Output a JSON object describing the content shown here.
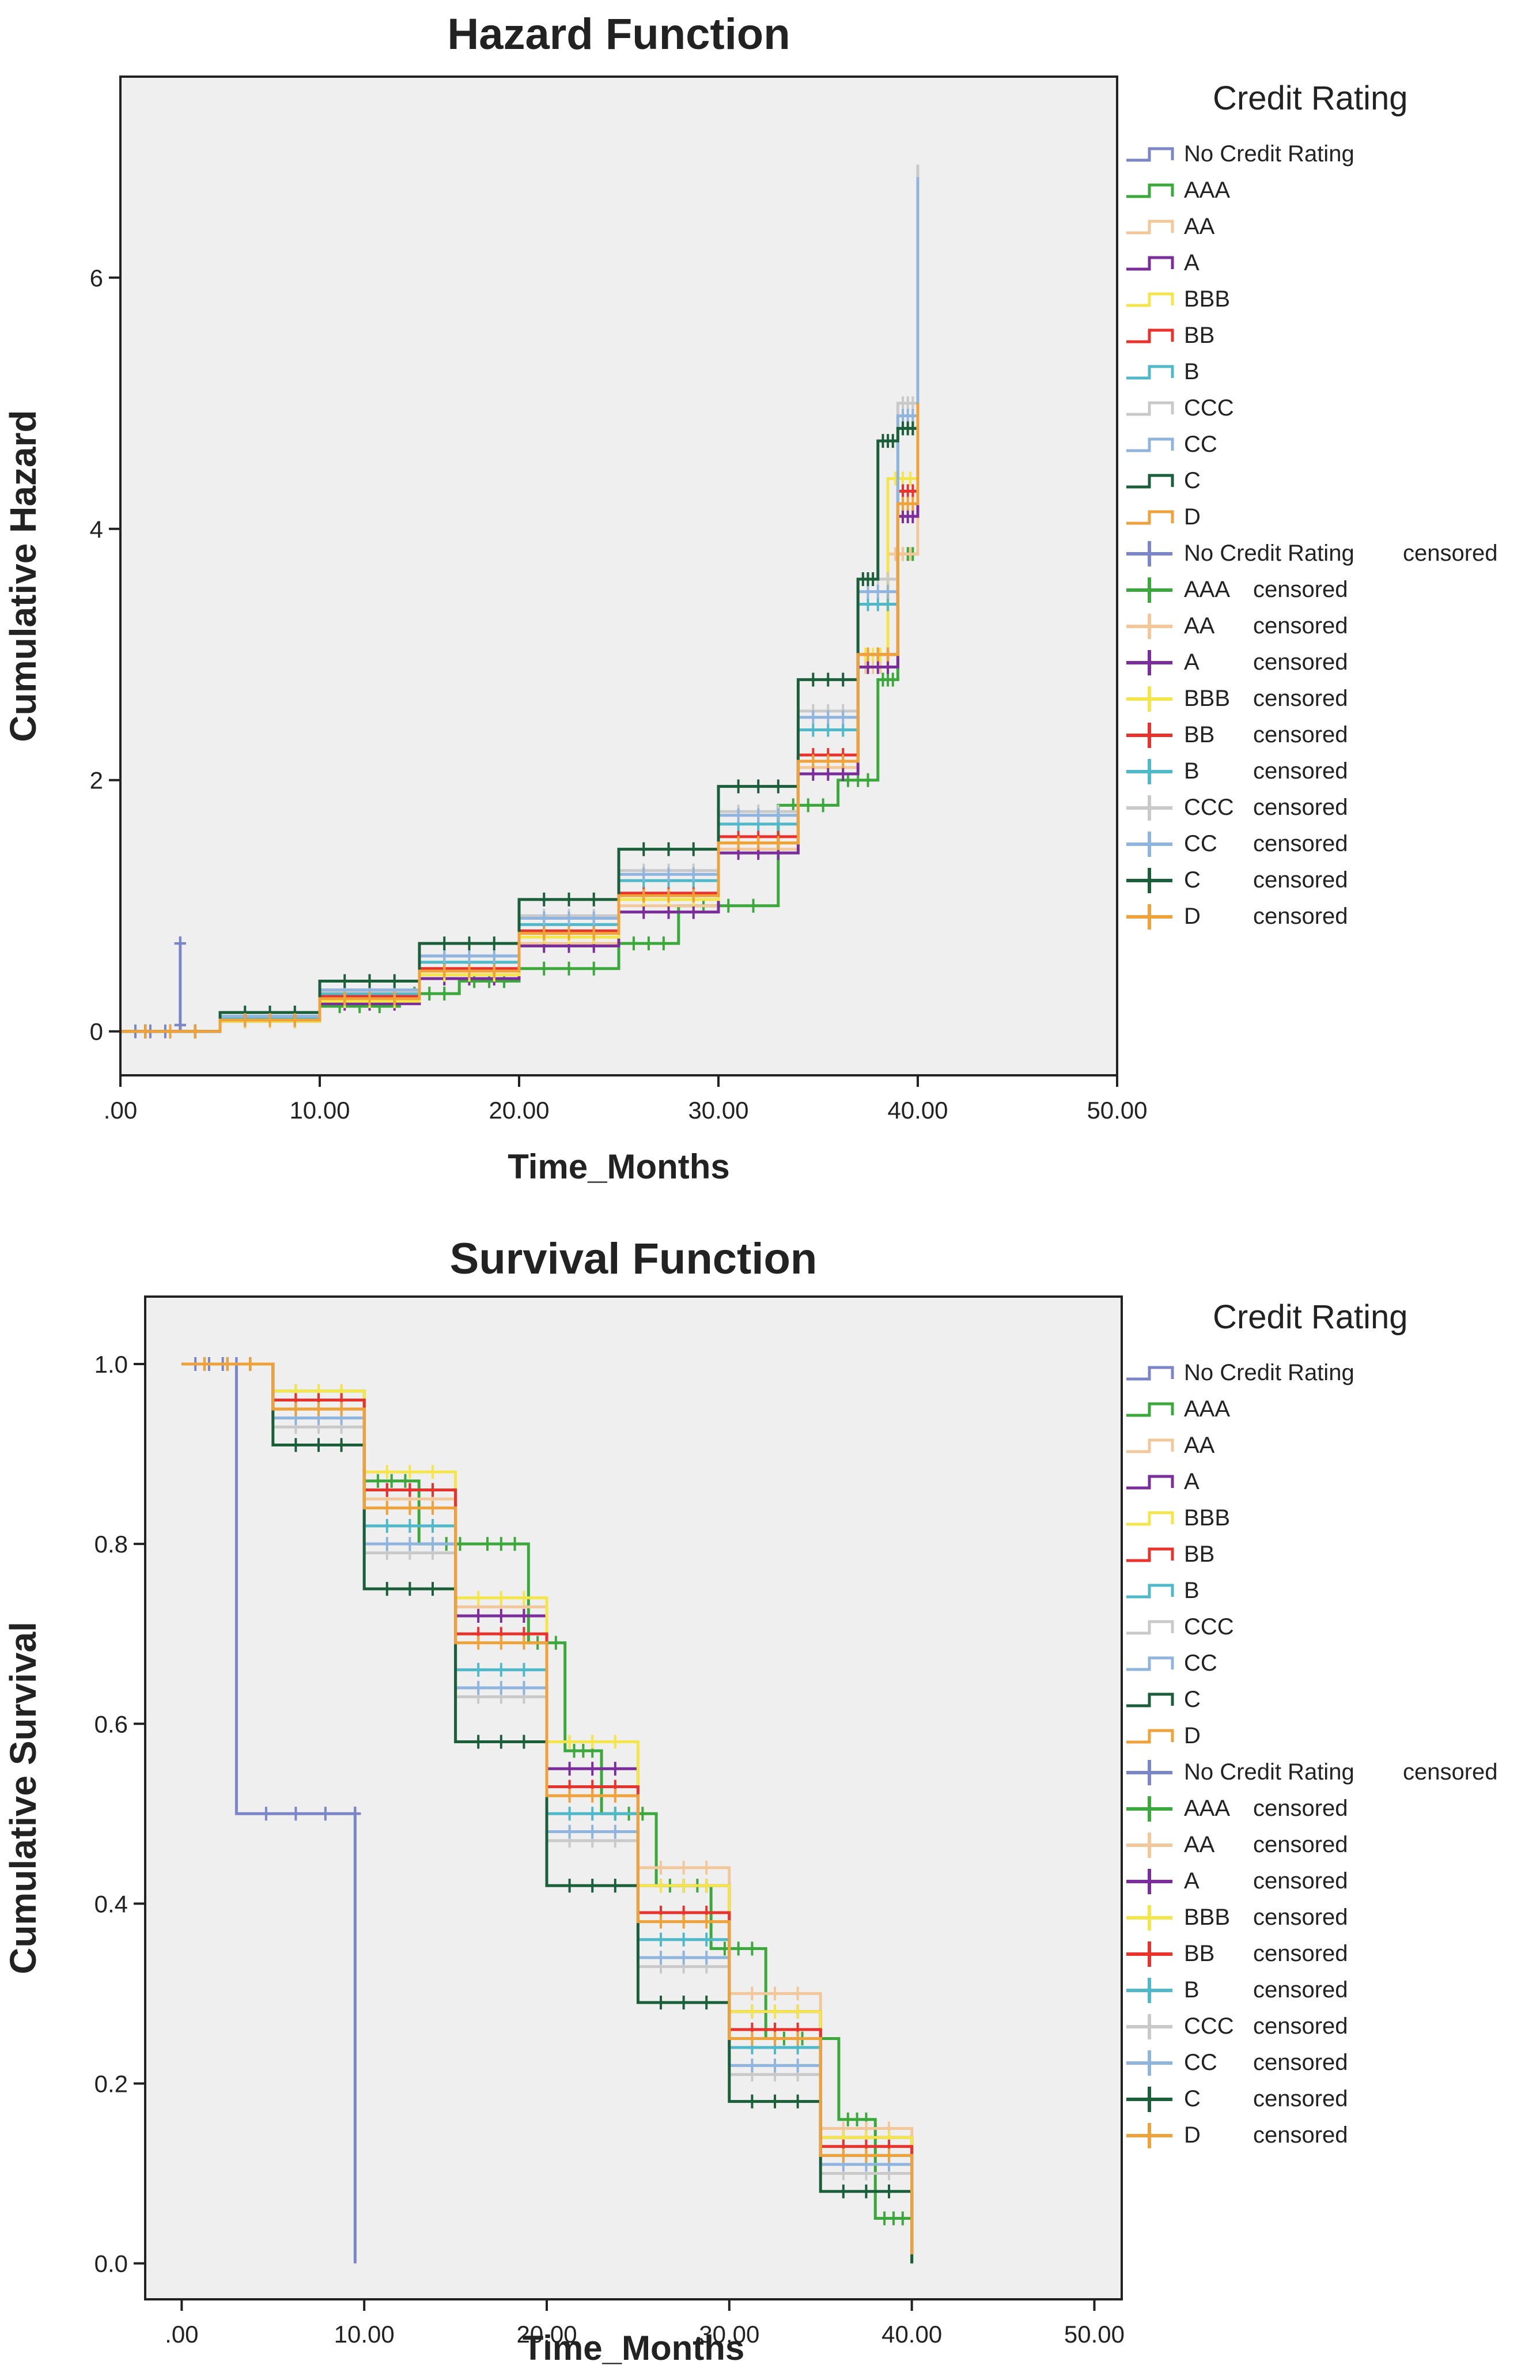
{
  "chart_data": [
    {
      "type": "line",
      "title": "Hazard Function",
      "xlabel": "Time_Months",
      "ylabel": "Cumulative Hazard",
      "xlim": [
        0,
        50
      ],
      "ylim": [
        -0.35,
        7.6
      ],
      "x_ticks": [
        0,
        10,
        20,
        30,
        40,
        50
      ],
      "x_tick_labels": [
        ".00",
        "10.00",
        "20.00",
        "30.00",
        "40.00",
        "50.00"
      ],
      "y_ticks": [
        0,
        2,
        4,
        6
      ],
      "y_tick_labels": [
        "0",
        "2",
        "4",
        "6"
      ],
      "legend": {
        "title": "Credit Rating",
        "placement": "right",
        "entries": [
          "No Credit Rating",
          "AAA",
          "AA",
          "A",
          "BBB",
          "BB",
          "B",
          "CCC",
          "CC",
          "C",
          "D"
        ],
        "censored_label": "censored"
      },
      "series": [
        {
          "name": "No Credit Rating",
          "color": "#7b86c9",
          "x": [
            0,
            3,
            3,
            3
          ],
          "y": [
            0,
            0.05,
            0.7,
            0.05
          ]
        },
        {
          "name": "AAA",
          "color": "#3aa83a",
          "x": [
            0,
            5,
            10,
            14,
            17,
            20,
            25,
            28,
            33,
            36,
            38,
            39,
            40
          ],
          "y": [
            0,
            0.1,
            0.2,
            0.3,
            0.4,
            0.5,
            0.7,
            1.0,
            1.8,
            2.0,
            2.8,
            3.8,
            4.3
          ]
        },
        {
          "name": "AA",
          "color": "#f2c79a",
          "x": [
            0,
            5,
            10,
            15,
            20,
            25,
            30,
            34,
            37,
            38.5,
            40
          ],
          "y": [
            0,
            0.1,
            0.25,
            0.45,
            0.7,
            1.0,
            1.45,
            2.1,
            2.9,
            3.8,
            5.3
          ]
        },
        {
          "name": "A",
          "color": "#7a2d9b",
          "x": [
            0,
            5,
            10,
            15,
            20,
            25,
            30,
            34,
            37,
            39,
            40
          ],
          "y": [
            0,
            0.08,
            0.22,
            0.42,
            0.68,
            0.95,
            1.42,
            2.05,
            2.9,
            4.1,
            5.1
          ]
        },
        {
          "name": "BBB",
          "color": "#f4e64a",
          "x": [
            0,
            5,
            10,
            15,
            20,
            25,
            30,
            34,
            37,
            38.5,
            40
          ],
          "y": [
            0,
            0.08,
            0.24,
            0.45,
            0.75,
            1.05,
            1.5,
            2.15,
            3.0,
            4.4,
            5.6
          ]
        },
        {
          "name": "BB",
          "color": "#e8322b",
          "x": [
            0,
            5,
            10,
            15,
            20,
            25,
            30,
            34,
            37,
            39,
            40
          ],
          "y": [
            0,
            0.1,
            0.28,
            0.5,
            0.8,
            1.1,
            1.55,
            2.2,
            3.0,
            4.3,
            5.2
          ]
        },
        {
          "name": "B",
          "color": "#4fb8c9",
          "x": [
            0,
            5,
            10,
            15,
            20,
            25,
            30,
            34,
            37,
            39,
            40
          ],
          "y": [
            0,
            0.1,
            0.3,
            0.55,
            0.85,
            1.2,
            1.65,
            2.4,
            3.4,
            4.8,
            6.6
          ]
        },
        {
          "name": "CCC",
          "color": "#c9c9c9",
          "x": [
            0,
            5,
            10,
            15,
            20,
            25,
            30,
            34,
            37,
            39,
            40
          ],
          "y": [
            0,
            0.12,
            0.32,
            0.6,
            0.92,
            1.28,
            1.75,
            2.55,
            3.6,
            5.0,
            6.9
          ]
        },
        {
          "name": "CC",
          "color": "#8fb4de",
          "x": [
            0,
            5,
            10,
            15,
            20,
            25,
            30,
            34,
            37,
            39,
            40
          ],
          "y": [
            0,
            0.12,
            0.33,
            0.6,
            0.9,
            1.25,
            1.72,
            2.5,
            3.5,
            4.9,
            6.8
          ]
        },
        {
          "name": "C",
          "color": "#1b5e3a",
          "x": [
            0,
            5,
            10,
            15,
            20,
            25,
            30,
            34,
            37,
            38,
            39,
            40
          ],
          "y": [
            0,
            0.15,
            0.4,
            0.7,
            1.05,
            1.45,
            1.95,
            2.8,
            3.6,
            4.7,
            4.8,
            5.0
          ]
        },
        {
          "name": "D",
          "color": "#f0a23a",
          "x": [
            0,
            5,
            10,
            15,
            20,
            25,
            30,
            34,
            37,
            39,
            40
          ],
          "y": [
            0,
            0.09,
            0.26,
            0.48,
            0.78,
            1.08,
            1.5,
            2.15,
            3.0,
            4.2,
            5.0
          ]
        }
      ]
    },
    {
      "type": "line",
      "title": "Survival Function",
      "xlabel": "Time_Months",
      "ylabel": "Cumulative Survival",
      "xlim": [
        -2,
        51.5
      ],
      "ylim": [
        -0.04,
        1.075
      ],
      "x_ticks": [
        0,
        10,
        20,
        30,
        40,
        50
      ],
      "x_tick_labels": [
        ".00",
        "10.00",
        "20.00",
        "30.00",
        "40.00",
        "50.00"
      ],
      "y_ticks": [
        0,
        0.2,
        0.4,
        0.6,
        0.8,
        1
      ],
      "y_tick_labels": [
        "0.0",
        "0.2",
        "0.4",
        "0.6",
        "0.8",
        "1.0"
      ],
      "legend": {
        "title": "Credit Rating",
        "placement": "right",
        "entries": [
          "No Credit Rating",
          "AAA",
          "AA",
          "A",
          "BBB",
          "BB",
          "B",
          "CCC",
          "CC",
          "C",
          "D"
        ],
        "censored_label": "censored"
      },
      "series": [
        {
          "name": "No Credit Rating",
          "color": "#7b86c9",
          "x": [
            0,
            3,
            3,
            9.5,
            9.5
          ],
          "y": [
            1.0,
            1.0,
            0.5,
            0.5,
            0.0
          ]
        },
        {
          "name": "AAA",
          "color": "#3aa83a",
          "x": [
            0,
            5,
            10,
            13,
            16,
            19,
            21,
            23,
            26,
            29,
            32,
            36,
            38,
            40
          ],
          "y": [
            1.0,
            0.97,
            0.87,
            0.8,
            0.8,
            0.69,
            0.57,
            0.5,
            0.42,
            0.35,
            0.25,
            0.16,
            0.05,
            0.0
          ]
        },
        {
          "name": "AA",
          "color": "#f2c79a",
          "x": [
            0,
            5,
            10,
            15,
            20,
            25,
            30,
            35,
            40
          ],
          "y": [
            1.0,
            0.95,
            0.85,
            0.73,
            0.58,
            0.44,
            0.3,
            0.15,
            0.02
          ]
        },
        {
          "name": "A",
          "color": "#7a2d9b",
          "x": [
            0,
            5,
            10,
            15,
            20,
            25,
            30,
            35,
            40
          ],
          "y": [
            1.0,
            0.96,
            0.86,
            0.72,
            0.55,
            0.42,
            0.28,
            0.14,
            0.02
          ]
        },
        {
          "name": "BBB",
          "color": "#f4e64a",
          "x": [
            0,
            5,
            10,
            15,
            20,
            25,
            30,
            35,
            40
          ],
          "y": [
            1.0,
            0.97,
            0.88,
            0.74,
            0.58,
            0.42,
            0.28,
            0.14,
            0.02
          ]
        },
        {
          "name": "BB",
          "color": "#e8322b",
          "x": [
            0,
            5,
            10,
            15,
            20,
            25,
            30,
            35,
            40
          ],
          "y": [
            1.0,
            0.96,
            0.86,
            0.7,
            0.53,
            0.39,
            0.26,
            0.13,
            0.02
          ]
        },
        {
          "name": "B",
          "color": "#4fb8c9",
          "x": [
            0,
            5,
            10,
            15,
            20,
            25,
            30,
            35,
            40
          ],
          "y": [
            1.0,
            0.95,
            0.82,
            0.66,
            0.5,
            0.36,
            0.24,
            0.12,
            0.01
          ]
        },
        {
          "name": "CCC",
          "color": "#c9c9c9",
          "x": [
            0,
            5,
            10,
            15,
            20,
            25,
            30,
            35,
            40
          ],
          "y": [
            1.0,
            0.93,
            0.79,
            0.63,
            0.47,
            0.33,
            0.21,
            0.1,
            0.01
          ]
        },
        {
          "name": "CC",
          "color": "#8fb4de",
          "x": [
            0,
            5,
            10,
            15,
            20,
            25,
            30,
            35,
            40
          ],
          "y": [
            1.0,
            0.94,
            0.8,
            0.64,
            0.48,
            0.34,
            0.22,
            0.11,
            0.01
          ]
        },
        {
          "name": "C",
          "color": "#1b5e3a",
          "x": [
            0,
            5,
            10,
            15,
            20,
            25,
            30,
            35,
            40
          ],
          "y": [
            1.0,
            0.91,
            0.75,
            0.58,
            0.42,
            0.29,
            0.18,
            0.08,
            0.0
          ]
        },
        {
          "name": "D",
          "color": "#f0a23a",
          "x": [
            0,
            5,
            10,
            15,
            20,
            25,
            30,
            35,
            40
          ],
          "y": [
            1.0,
            0.95,
            0.84,
            0.69,
            0.52,
            0.38,
            0.25,
            0.12,
            0.01
          ]
        }
      ]
    }
  ]
}
